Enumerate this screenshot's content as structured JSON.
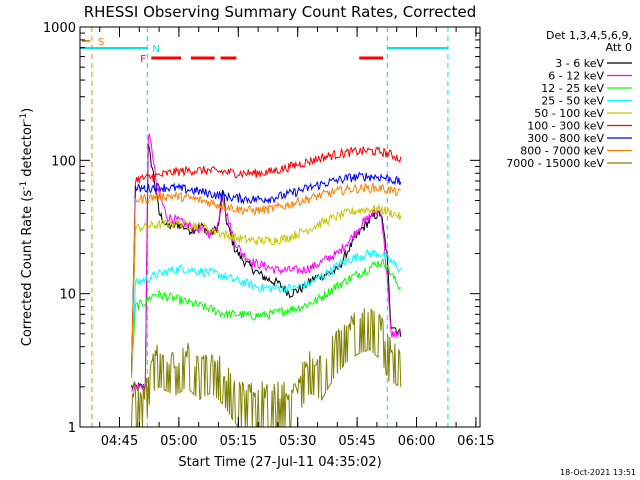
{
  "chart_data": {
    "type": "line",
    "title": "RHESSI Observing Summary Count Rates, Corrected",
    "xlabel": "Start Time (27-Jul-11 04:35:02)",
    "ylabel_main": "Corrected Count Rate (s",
    "ylabel_sup1": "-1",
    "ylabel_mid": " detector",
    "ylabel_sup2": "-1",
    "ylabel_end": ")",
    "yscale": "log",
    "ylim": [
      1,
      1000
    ],
    "xlim_minutes": [
      0,
      101
    ],
    "x_tick_labels": [
      "04:45",
      "05:00",
      "05:15",
      "05:30",
      "05:45",
      "06:00",
      "06:15"
    ],
    "x_tick_minutes": [
      9.97,
      24.97,
      39.97,
      54.97,
      69.97,
      84.97,
      99.97
    ],
    "y_tick_labels": [
      "1",
      "10",
      "100",
      "1000"
    ],
    "y_tick_values": [
      1,
      10,
      100,
      1000
    ],
    "legend": {
      "header1": "Det 1,3,4,5,6,9,",
      "header2": "Att 0",
      "placement": "right"
    },
    "markers": {
      "s_label": "S",
      "n_label": "N",
      "f_label": "F",
      "s_color": "#ff8000",
      "n_color": "#00e5e5",
      "f_color": "#ff0000",
      "s_line_minute": 3.0,
      "n_vlines_minute": [
        17.0,
        77.6,
        92.9
      ],
      "night_segments_minute": [
        [
          0,
          17.0
        ],
        [
          77.6,
          92.9
        ]
      ],
      "flare_segments_minute": [
        [
          18.0,
          25.5
        ],
        [
          28.0,
          34.0
        ],
        [
          35.5,
          39.5
        ],
        [
          70.5,
          76.5
        ]
      ],
      "data_start_minute": 13.0,
      "data_end_minute": 81.0
    },
    "series": [
      {
        "name": "3 - 6 keV",
        "color": "#000000",
        "points": [
          [
            13,
            2
          ],
          [
            16.5,
            2
          ],
          [
            17.2,
            130
          ],
          [
            18.5,
            80
          ],
          [
            20,
            40
          ],
          [
            22,
            32
          ],
          [
            25,
            33
          ],
          [
            28,
            30
          ],
          [
            31,
            32
          ],
          [
            33,
            28
          ],
          [
            35,
            32
          ],
          [
            36,
            62
          ],
          [
            37,
            35
          ],
          [
            39,
            22
          ],
          [
            41,
            18
          ],
          [
            44,
            15
          ],
          [
            47,
            13
          ],
          [
            50,
            12
          ],
          [
            53,
            10
          ],
          [
            56,
            11
          ],
          [
            59,
            13
          ],
          [
            62,
            14
          ],
          [
            65,
            15
          ],
          [
            68,
            22
          ],
          [
            71,
            30
          ],
          [
            74,
            38
          ],
          [
            76,
            40
          ],
          [
            77.5,
            20
          ],
          [
            78.5,
            6
          ],
          [
            81,
            5
          ]
        ]
      },
      {
        "name": "6 - 12 keV",
        "color": "#ff00ff",
        "points": [
          [
            13,
            2
          ],
          [
            16.5,
            2
          ],
          [
            17.2,
            160
          ],
          [
            18.2,
            120
          ],
          [
            19.5,
            60
          ],
          [
            22,
            38
          ],
          [
            25,
            35
          ],
          [
            28,
            32
          ],
          [
            31,
            30
          ],
          [
            33,
            28
          ],
          [
            35,
            34
          ],
          [
            36,
            55
          ],
          [
            37,
            40
          ],
          [
            39,
            25
          ],
          [
            41,
            20
          ],
          [
            44,
            17
          ],
          [
            47,
            16
          ],
          [
            50,
            15
          ],
          [
            53,
            15
          ],
          [
            56,
            15
          ],
          [
            59,
            16
          ],
          [
            62,
            18
          ],
          [
            65,
            20
          ],
          [
            68,
            25
          ],
          [
            71,
            33
          ],
          [
            74,
            40
          ],
          [
            76,
            42
          ],
          [
            77.5,
            14
          ],
          [
            78.5,
            5
          ],
          [
            81,
            5
          ]
        ]
      },
      {
        "name": "12 - 25 keV",
        "color": "#00ff00",
        "points": [
          [
            13,
            2.5
          ],
          [
            14,
            8
          ],
          [
            16,
            8.5
          ],
          [
            17,
            9
          ],
          [
            19,
            10
          ],
          [
            22,
            9.5
          ],
          [
            25,
            9
          ],
          [
            28,
            8.5
          ],
          [
            31,
            8
          ],
          [
            34,
            7.5
          ],
          [
            37,
            7
          ],
          [
            40,
            7
          ],
          [
            44,
            6.8
          ],
          [
            48,
            7
          ],
          [
            52,
            7.5
          ],
          [
            56,
            8
          ],
          [
            60,
            9
          ],
          [
            64,
            11
          ],
          [
            68,
            13
          ],
          [
            72,
            15
          ],
          [
            75,
            17
          ],
          [
            77,
            17
          ],
          [
            78,
            15
          ],
          [
            80,
            12
          ],
          [
            81,
            11
          ]
        ]
      },
      {
        "name": "25 - 50 keV",
        "color": "#00ffff",
        "points": [
          [
            13,
            2.5
          ],
          [
            14,
            12
          ],
          [
            17,
            13
          ],
          [
            20,
            14
          ],
          [
            23,
            15
          ],
          [
            26,
            15.5
          ],
          [
            29,
            15
          ],
          [
            32,
            14.5
          ],
          [
            35,
            14
          ],
          [
            38,
            13
          ],
          [
            42,
            12
          ],
          [
            46,
            11
          ],
          [
            50,
            11
          ],
          [
            54,
            11
          ],
          [
            58,
            12
          ],
          [
            62,
            14
          ],
          [
            66,
            17
          ],
          [
            70,
            19
          ],
          [
            73,
            20
          ],
          [
            76,
            20
          ],
          [
            78,
            18
          ],
          [
            80,
            16
          ],
          [
            81,
            15
          ]
        ]
      },
      {
        "name": "50 - 100 keV",
        "color": "#c8c800",
        "points": [
          [
            13,
            2.5
          ],
          [
            14,
            31
          ],
          [
            17,
            32
          ],
          [
            20,
            33
          ],
          [
            24,
            34
          ],
          [
            28,
            33
          ],
          [
            32,
            31
          ],
          [
            36,
            28
          ],
          [
            40,
            26
          ],
          [
            44,
            25
          ],
          [
            48,
            25
          ],
          [
            52,
            26
          ],
          [
            56,
            29
          ],
          [
            60,
            33
          ],
          [
            64,
            37
          ],
          [
            68,
            41
          ],
          [
            72,
            43
          ],
          [
            76,
            43
          ],
          [
            78,
            41
          ],
          [
            80,
            39
          ],
          [
            81,
            37
          ]
        ]
      },
      {
        "name": "100 - 300 keV",
        "color": "#ff0000",
        "points": [
          [
            13,
            2.5
          ],
          [
            14,
            72
          ],
          [
            17,
            74
          ],
          [
            20,
            77
          ],
          [
            24,
            82
          ],
          [
            28,
            84
          ],
          [
            32,
            84
          ],
          [
            36,
            82
          ],
          [
            40,
            80
          ],
          [
            44,
            80
          ],
          [
            48,
            82
          ],
          [
            52,
            88
          ],
          [
            56,
            95
          ],
          [
            60,
            103
          ],
          [
            64,
            110
          ],
          [
            68,
            115
          ],
          [
            72,
            118
          ],
          [
            76,
            116
          ],
          [
            78,
            112
          ],
          [
            80,
            106
          ],
          [
            81,
            102
          ]
        ]
      },
      {
        "name": "300 - 800 keV",
        "color": "#0000ff",
        "points": [
          [
            13,
            2.5
          ],
          [
            14,
            61
          ],
          [
            17,
            62
          ],
          [
            20,
            63
          ],
          [
            24,
            62
          ],
          [
            28,
            60
          ],
          [
            32,
            57
          ],
          [
            36,
            54
          ],
          [
            40,
            52
          ],
          [
            44,
            51
          ],
          [
            48,
            52
          ],
          [
            52,
            55
          ],
          [
            56,
            60
          ],
          [
            60,
            65
          ],
          [
            64,
            70
          ],
          [
            68,
            74
          ],
          [
            72,
            76
          ],
          [
            76,
            75
          ],
          [
            78,
            73
          ],
          [
            80,
            70
          ],
          [
            81,
            68
          ]
        ]
      },
      {
        "name": "800 - 7000 keV",
        "color": "#ff8000",
        "points": [
          [
            13,
            2.5
          ],
          [
            14,
            51
          ],
          [
            17,
            52
          ],
          [
            20,
            54
          ],
          [
            24,
            54
          ],
          [
            28,
            52
          ],
          [
            32,
            49
          ],
          [
            36,
            46
          ],
          [
            40,
            43
          ],
          [
            44,
            42
          ],
          [
            48,
            43
          ],
          [
            52,
            46
          ],
          [
            56,
            50
          ],
          [
            60,
            54
          ],
          [
            64,
            58
          ],
          [
            68,
            61
          ],
          [
            72,
            62
          ],
          [
            76,
            62
          ],
          [
            78,
            60
          ],
          [
            80,
            58
          ],
          [
            81,
            56
          ]
        ]
      },
      {
        "name": "7000 - 15000 keV",
        "color": "#808000",
        "points": [
          [
            13,
            1
          ],
          [
            16.5,
            1
          ],
          [
            17,
            1.2
          ],
          [
            18,
            1.8
          ],
          [
            20,
            2
          ],
          [
            24,
            1.7
          ],
          [
            27,
            2
          ],
          [
            30,
            1.6
          ],
          [
            33,
            1.8
          ],
          [
            36,
            1.5
          ],
          [
            38,
            1.2
          ],
          [
            40,
            1
          ],
          [
            55,
            1
          ],
          [
            56,
            1.4
          ],
          [
            58,
            1.8
          ],
          [
            61,
            1.6
          ],
          [
            64,
            2.3
          ],
          [
            67,
            3
          ],
          [
            70,
            3.5
          ],
          [
            73,
            3.8
          ],
          [
            76,
            3.2
          ],
          [
            78,
            2.2
          ],
          [
            81,
            2
          ]
        ]
      }
    ]
  },
  "footer": {
    "datestamp": "18-Oct-2021 13:51"
  }
}
